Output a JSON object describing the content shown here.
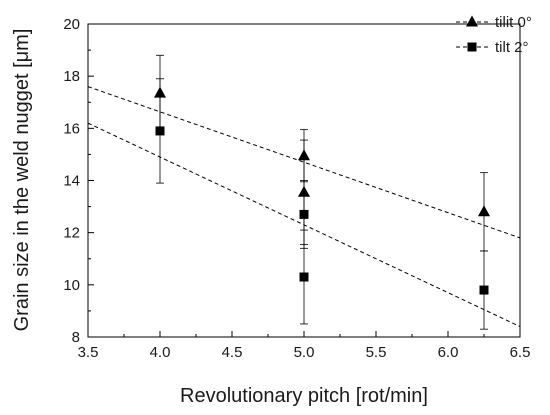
{
  "chart_data": {
    "type": "scatter",
    "title": "",
    "xlabel": "Revolutionary pitch [rot/min]",
    "ylabel": "Grain size in the weld nugget [μm]",
    "xlim": [
      3.5,
      6.5
    ],
    "ylim": [
      8,
      20
    ],
    "xticks": [
      "3.5",
      "4.0",
      "4.5",
      "5.0",
      "5.5",
      "6.0",
      "6.5"
    ],
    "yticks": [
      "8",
      "10",
      "12",
      "14",
      "16",
      "18",
      "20"
    ],
    "grid": false,
    "legend_position": "top-right",
    "series": [
      {
        "name": "tilit 0°",
        "marker": "triangle",
        "color": "#000000",
        "points": [
          {
            "x": 4.0,
            "y": 17.35,
            "err": 1.45
          },
          {
            "x": 5.0,
            "y": 14.95,
            "err": 1.0
          },
          {
            "x": 5.0,
            "y": 13.55,
            "err": 2.0
          },
          {
            "x": 6.25,
            "y": 12.8,
            "err": 1.5
          }
        ],
        "trend": {
          "x": [
            3.5,
            6.5
          ],
          "y": [
            17.6,
            11.8
          ]
        }
      },
      {
        "name": "tilt 2°",
        "marker": "square",
        "color": "#000000",
        "points": [
          {
            "x": 4.0,
            "y": 15.9,
            "err": 2.0
          },
          {
            "x": 5.0,
            "y": 12.7,
            "err": 1.3
          },
          {
            "x": 5.0,
            "y": 10.3,
            "err": 1.8
          },
          {
            "x": 6.25,
            "y": 9.8,
            "err": 1.5
          }
        ],
        "trend": {
          "x": [
            3.5,
            6.5
          ],
          "y": [
            16.2,
            8.4
          ]
        }
      }
    ]
  }
}
